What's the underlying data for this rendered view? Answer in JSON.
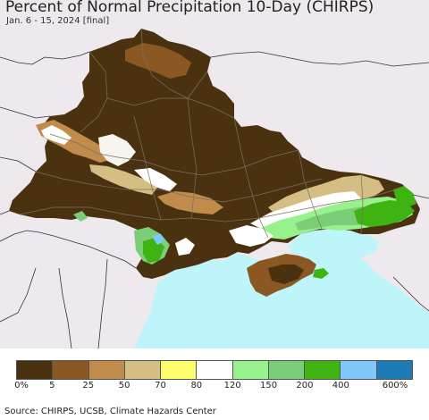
{
  "title": "Percent of Normal Precipitation 10-Day (CHIRPS)",
  "subtitle": "Jan. 6 - 15, 2024 [final]",
  "legend": {
    "colors": [
      "#4a3211",
      "#8b5722",
      "#c18b4c",
      "#d4be84",
      "#fdfe6e",
      "#ffffff",
      "#97f28e",
      "#7ccd77",
      "#3fb311",
      "#80c7fb",
      "#1c7ab4"
    ],
    "ticks": [
      "0%",
      "5",
      "25",
      "50",
      "70",
      "80",
      "120",
      "150",
      "200",
      "400",
      "600%"
    ]
  },
  "source": "Source: CHIRPS, UCSB, Climate Hazards Center"
}
